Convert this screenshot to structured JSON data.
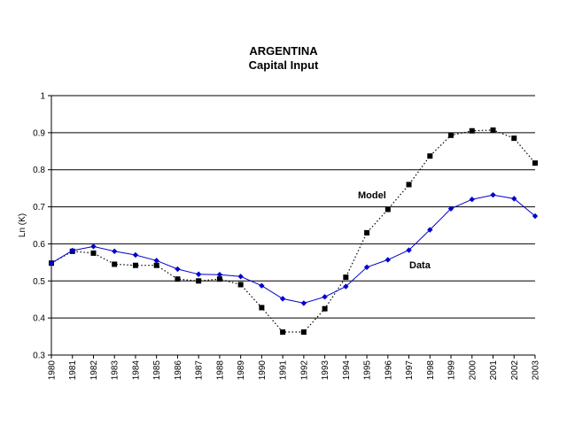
{
  "chart_data": {
    "type": "line",
    "title": "ARGENTINA",
    "subtitle": "Capital Input",
    "xlabel": "",
    "ylabel": "Ln (K)",
    "ylim": [
      0.3,
      1
    ],
    "yticks": [
      "0.3",
      "0.4",
      "0.5",
      "0.6",
      "0.7",
      "0.8",
      "0.9",
      "1"
    ],
    "grid": "horizontal",
    "legend": "none",
    "x": [
      "1980",
      "1981",
      "1982",
      "1983",
      "1984",
      "1985",
      "1986",
      "1987",
      "1988",
      "1989",
      "1990",
      "1991",
      "1992",
      "1993",
      "1994",
      "1995",
      "1996",
      "1997",
      "1998",
      "1999",
      "2000",
      "2001",
      "2002",
      "2003"
    ],
    "series": [
      {
        "name": "Model",
        "style": "dotted",
        "marker": "square",
        "color": "#000000",
        "values": [
          0.548,
          0.58,
          0.575,
          0.545,
          0.542,
          0.542,
          0.505,
          0.5,
          0.505,
          0.49,
          0.428,
          0.362,
          0.362,
          0.425,
          0.51,
          0.63,
          0.693,
          0.76,
          0.837,
          0.893,
          0.905,
          0.907,
          0.885,
          0.818
        ]
      },
      {
        "name": "Data",
        "style": "solid",
        "marker": "diamond",
        "color": "#0000cc",
        "values": [
          0.548,
          0.582,
          0.593,
          0.58,
          0.57,
          0.555,
          0.532,
          0.518,
          0.517,
          0.512,
          0.487,
          0.452,
          0.44,
          0.457,
          0.485,
          0.537,
          0.557,
          0.583,
          0.638,
          0.695,
          0.72,
          0.732,
          0.722,
          0.675
        ]
      }
    ],
    "annotations": [
      {
        "text": "Model",
        "series": "Model"
      },
      {
        "text": "Data",
        "series": "Data"
      }
    ]
  }
}
